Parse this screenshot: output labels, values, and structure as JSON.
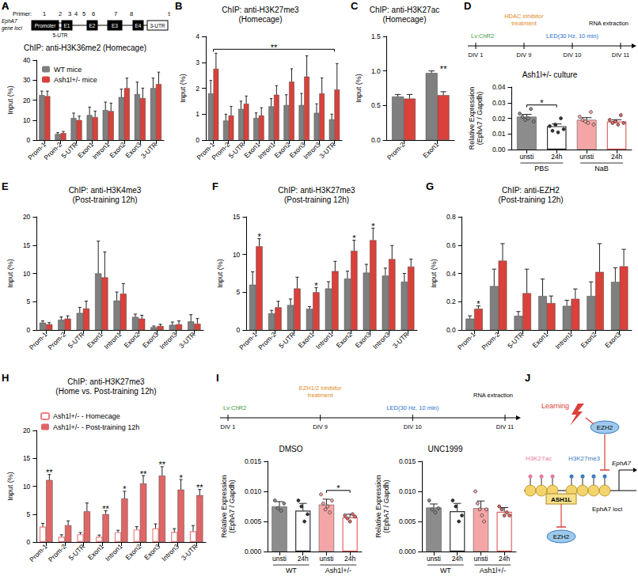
{
  "gene_map": {
    "panel": "A",
    "primer_label": "Primer:",
    "primers": [
      "1",
      "2",
      "3",
      "4",
      "5",
      "6",
      "7",
      "8",
      "9"
    ],
    "locus_label": "EphA7\ngene loci",
    "elements": [
      "Promoter",
      "E1",
      "E2",
      "E3",
      "E4",
      "3-UTR"
    ],
    "utr5_label": "5-UTR"
  },
  "chart_data": [
    {
      "panel": "A",
      "type": "bar",
      "title": "ChIP: anti-H3K36me2 (Homecage)",
      "ylabel": "Input (%)",
      "categories": [
        "Prom-1",
        "Prom-2",
        "5-UTR",
        "Exon1",
        "Intron1",
        "Exon2",
        "Exon3",
        "3-UTR"
      ],
      "series": [
        {
          "name": "WT mice",
          "color": "#7f7f7f",
          "values": [
            22.5,
            3,
            11,
            12.5,
            15,
            21.5,
            23,
            26
          ],
          "errors": [
            2,
            0.7,
            2.5,
            4,
            4,
            4,
            6,
            5
          ]
        },
        {
          "name": "Ash1l+/- mice",
          "color": "#d9413a",
          "values": [
            22,
            3.5,
            10,
            11.5,
            14.5,
            26,
            21,
            28
          ],
          "errors": [
            2.5,
            0.8,
            2,
            3,
            4,
            5,
            5,
            6
          ]
        }
      ],
      "ylim": [
        0,
        40
      ],
      "yticks": [
        0,
        10,
        20,
        30,
        40
      ],
      "legend": "top-left",
      "grid": false
    },
    {
      "panel": "B",
      "type": "bar",
      "title": "ChIP: anti-H3K27me3",
      "subtitle": "(Homecage)",
      "ylabel": "Input (%)",
      "categories": [
        "Prom-1",
        "Prom-2",
        "5-UTR",
        "Exon1",
        "Intron1",
        "Exon2",
        "Exon3",
        "Intron3",
        "3-UTR"
      ],
      "series": [
        {
          "color": "#7f7f7f",
          "values": [
            1.8,
            0.75,
            1.2,
            0.85,
            1.3,
            1.35,
            1.35,
            1.05,
            0.8
          ],
          "errors": [
            0.5,
            0.25,
            0.3,
            0.2,
            0.3,
            0.4,
            0.45,
            0.35,
            0.2
          ]
        },
        {
          "color": "#d9413a",
          "values": [
            2.75,
            0.95,
            1.4,
            0.95,
            1.75,
            2.25,
            2.45,
            1.8,
            1.95
          ],
          "errors": [
            0.6,
            0.35,
            0.3,
            0.3,
            0.35,
            0.5,
            0.8,
            0.6,
            1.0
          ]
        }
      ],
      "ylim": [
        0,
        4
      ],
      "yticks": [
        0,
        1,
        2,
        3,
        4
      ],
      "annotations": [
        {
          "text": "**",
          "from": "Prom-1",
          "to": "3-UTR"
        }
      ],
      "grid": false
    },
    {
      "panel": "C",
      "type": "bar",
      "title": "ChIP: anti-H3K27ac",
      "subtitle": "(Homecage)",
      "ylabel": "Input (%)",
      "categories": [
        "Prom-2",
        "Exon1"
      ],
      "series": [
        {
          "color": "#7f7f7f",
          "values": [
            0.63,
            0.97
          ],
          "errors": [
            0.03,
            0.03
          ]
        },
        {
          "color": "#d9413a",
          "values": [
            0.6,
            0.65
          ],
          "errors": [
            0.06,
            0.05
          ]
        }
      ],
      "ylim": [
        0,
        1.5
      ],
      "yticks": [
        {
          "value": 0,
          "label": "0.0"
        },
        0.5,
        {
          "value": 1,
          "label": "1.0"
        },
        1.5
      ],
      "annotations": [
        {
          "text": "**",
          "at": "Exon1"
        }
      ],
      "grid": false
    },
    {
      "panel": "D",
      "type": "bar",
      "title": "Ash1l+/- culture",
      "ylabel": "Relative Expression\n(EphA7 / Gapdh)",
      "categories": [
        "unsti",
        "24h",
        "unsti",
        "24h"
      ],
      "groups": [
        {
          "label": "PBS",
          "from": 0,
          "to": 1
        },
        {
          "label": "NaB",
          "from": 2,
          "to": 3
        }
      ],
      "series": [
        {
          "colors": [
            "#8c8c8c",
            "#333333",
            "#f4a6a6",
            "#e06666"
          ],
          "marker": [
            "filled",
            "hollow",
            "filled",
            "hollow"
          ],
          "values": [
            0.021,
            0.015,
            0.019,
            0.018
          ],
          "errors": [
            0.0015,
            0.0014,
            0.0014,
            0.0011
          ],
          "points": [
            [
              0.023,
              0.021,
              0.019,
              0.02,
              0.026,
              0.018
            ],
            [
              0.015,
              0.012,
              0.016,
              0.011,
              0.02,
              0.013
            ],
            [
              0.021,
              0.019,
              0.018,
              0.017,
              0.024,
              0.016
            ],
            [
              0.019,
              0.017,
              0.018,
              0.016,
              0.022,
              0.017
            ]
          ]
        }
      ],
      "ylim": [
        0,
        0.04
      ],
      "yticks": [
        {
          "value": 0,
          "label": "0.00"
        },
        0.01,
        0.02,
        0.03,
        0.04
      ],
      "annotations": [
        {
          "text": "*",
          "from": 0,
          "to": 1
        }
      ],
      "timeline": {
        "steps": [
          {
            "above": "Lv:ChR2",
            "below": "DIV 1",
            "color": "#3a9a3a"
          },
          {
            "above": "HDAC inhibitor\ntreatment",
            "below": "DIV 9",
            "color": "#e08a1e"
          },
          {
            "above": "LED(30 Hz, 10 min)",
            "below": "DIV 10",
            "color": "#1f6fd0"
          },
          {
            "above": "RNA extraction",
            "below": "DIV 11",
            "color": "#000000"
          }
        ]
      },
      "grid": false
    },
    {
      "panel": "E",
      "type": "bar",
      "title": "ChIP: anti-H3K4me3",
      "subtitle": "(Post-training 12h)",
      "ylabel": "Input (%)",
      "categories": [
        "Prom-1",
        "Prom-2",
        "5-UTR",
        "Exon1",
        "Intron1",
        "Exon2",
        "Exon3",
        "Intron3",
        "3-UTR"
      ],
      "series": [
        {
          "color": "#7f7f7f",
          "values": [
            1.3,
            1.8,
            3,
            10,
            5.2,
            2.3,
            0.5,
            0.9,
            1.5
          ],
          "errors": [
            0.3,
            0.5,
            1,
            5.7,
            1.5,
            0.5,
            0.2,
            0.5,
            1.2
          ]
        },
        {
          "color": "#d9413a",
          "values": [
            1.0,
            2.0,
            3.8,
            9.3,
            6.4,
            2.0,
            0.7,
            1.0,
            1.1
          ],
          "errors": [
            0.3,
            0.5,
            1.3,
            4.5,
            1.8,
            0.6,
            0.3,
            0.6,
            0.9
          ]
        }
      ],
      "ylim": [
        0,
        20
      ],
      "yticks": [
        0,
        5,
        10,
        15,
        20
      ],
      "grid": false
    },
    {
      "panel": "F",
      "type": "bar",
      "title": "ChIP: anti-H3K27me3",
      "subtitle": "(Post-training 12h)",
      "ylabel": "Input (%)",
      "categories": [
        "Prom-1",
        "Prom-2",
        "5-UTR",
        "Exon1",
        "Intron1",
        "Exon2",
        "Exon3",
        "Intron3",
        "3-UTR"
      ],
      "series": [
        {
          "color": "#7f7f7f",
          "values": [
            6,
            2.2,
            3.3,
            2.8,
            5.5,
            6.8,
            7.6,
            7.2,
            6.4
          ],
          "errors": [
            1.7,
            0.4,
            0.8,
            0.3,
            0.9,
            1.0,
            1.1,
            1.0,
            1.1
          ]
        },
        {
          "color": "#d9413a",
          "values": [
            11.1,
            3,
            5.5,
            5,
            7.8,
            10.5,
            11.9,
            9.4,
            8.4
          ],
          "errors": [
            1.0,
            0.8,
            1.5,
            0.6,
            1.3,
            1.4,
            1.6,
            1.8,
            1.0
          ]
        }
      ],
      "ylim": [
        0,
        15
      ],
      "yticks": [
        0,
        5,
        10,
        15
      ],
      "annotations": [
        {
          "text": "*",
          "at": "Prom-1"
        },
        {
          "text": "*",
          "at": "Exon1"
        },
        {
          "text": "*",
          "at": "Exon2"
        },
        {
          "text": "*",
          "at": "Exon3"
        }
      ],
      "grid": false
    },
    {
      "panel": "G",
      "type": "bar",
      "title": "ChIP: anti-EZH2",
      "subtitle": "(Post-training 12h)",
      "ylabel": "Input (%)",
      "categories": [
        "Prom-1",
        "Prom-2",
        "5-UTR",
        "Exon1",
        "Intron1",
        "Exon2",
        "Exon3"
      ],
      "series": [
        {
          "color": "#7f7f7f",
          "values": [
            0.08,
            0.31,
            0.1,
            0.24,
            0.17,
            0.24,
            0.34
          ],
          "errors": [
            0.02,
            0.12,
            0.03,
            0.12,
            0.04,
            0.1,
            0.1
          ]
        },
        {
          "color": "#d9413a",
          "values": [
            0.15,
            0.49,
            0.26,
            0.19,
            0.22,
            0.41,
            0.45
          ],
          "errors": [
            0.02,
            0.12,
            0.17,
            0.05,
            0.07,
            0.2,
            0.12
          ]
        }
      ],
      "ylim": [
        0,
        0.8
      ],
      "yticks": [
        {
          "value": 0,
          "label": "0.0"
        },
        0.2,
        0.4,
        0.6,
        0.8
      ],
      "annotations": [
        {
          "text": "*",
          "at": "Prom-1"
        }
      ],
      "grid": false
    },
    {
      "panel": "H",
      "type": "bar",
      "title": "ChIP: anti-H3K27me3",
      "subtitle": "(Home vs. Post-training 12h)",
      "ylabel": "Input (%)",
      "categories": [
        "Prom-1",
        "Prom-2",
        "5-UTR",
        "Exon1",
        "Intron1",
        "Exon2",
        "Exon3",
        "Intron3",
        "3-UTR"
      ],
      "series": [
        {
          "name": "Ash1l+/- - Homecage",
          "color": "#f08080",
          "marker": "hollow",
          "values": [
            2.75,
            0.95,
            1.4,
            0.95,
            1.75,
            2.25,
            2.45,
            1.8,
            1.95
          ],
          "errors": [
            0.6,
            0.35,
            0.3,
            0.3,
            0.35,
            0.5,
            0.8,
            0.6,
            1.0
          ]
        },
        {
          "name": "Ash1l+/- - Post-training 12h",
          "color": "#e06666",
          "values": [
            11.1,
            3,
            5.5,
            5,
            7.8,
            10.5,
            11.9,
            9.4,
            8.4
          ],
          "errors": [
            1.0,
            0.8,
            1.5,
            0.6,
            1.3,
            1.4,
            1.6,
            1.8,
            1.0
          ]
        }
      ],
      "ylim": [
        0,
        20
      ],
      "yticks": [
        0,
        5,
        10,
        15,
        20
      ],
      "annotations": [
        {
          "text": "**",
          "at": "Prom-1"
        },
        {
          "text": "**",
          "at": "Exon1"
        },
        {
          "text": "*",
          "at": "Intron1"
        },
        {
          "text": "**",
          "at": "Exon2"
        },
        {
          "text": "**",
          "at": "Exon3"
        },
        {
          "text": "*",
          "at": "Intron3"
        },
        {
          "text": "**",
          "at": "3-UTR"
        }
      ],
      "legend": "top",
      "grid": false
    },
    {
      "panel": "I",
      "type": "bar",
      "title": "DMSO",
      "ylabel": "Relative Expression\n(EphA7 / Gapdh)",
      "categories": [
        "unsti",
        "24h",
        "unsti",
        "24h"
      ],
      "groups": [
        {
          "label": "WT",
          "from": 0,
          "to": 1
        },
        {
          "label": "Ash1l+/-",
          "from": 2,
          "to": 3
        }
      ],
      "series": [
        {
          "colors": [
            "#8c8c8c",
            "#333333",
            "#f4a6a6",
            "#e06666"
          ],
          "marker": [
            "filled",
            "hollow",
            "filled",
            "hollow"
          ],
          "values": [
            0.0075,
            0.0068,
            0.0078,
            0.0057
          ],
          "errors": [
            0.0008,
            0.0012,
            0.0009,
            0.0005
          ],
          "points": [
            [
              0.0085,
              0.0072,
              0.0068,
              0.008
            ],
            [
              0.0085,
              0.0075,
              0.005,
              0.0062
            ],
            [
              0.0095,
              0.008,
              0.007,
              0.0075,
              0.0065,
              0.0085
            ],
            [
              0.006,
              0.0055,
              0.005,
              0.0062,
              0.0058
            ]
          ]
        }
      ],
      "ylim": [
        0,
        0.015
      ],
      "yticks": [
        {
          "value": 0,
          "label": "0.000"
        },
        0.005,
        {
          "value": 0.01,
          "label": "0.010"
        },
        0.015
      ],
      "annotations": [
        {
          "text": "*",
          "from": 2,
          "to": 3
        }
      ],
      "timeline": {
        "steps": [
          {
            "above": "Lv:ChR2",
            "below": "DIV 1",
            "color": "#3a9a3a"
          },
          {
            "above": "EZH1/2 inhibitor\ntreatment",
            "below": "DIV 9",
            "color": "#e08a1e"
          },
          {
            "above": "LED(30 Hz, 10 min)",
            "below": "DIV 10",
            "color": "#1f6fd0"
          },
          {
            "above": "RNA extraction",
            "below": "DIV 11",
            "color": "#000000"
          }
        ]
      },
      "grid": false
    },
    {
      "type": "bar",
      "title": "UNC1999",
      "ylabel": "Relative Expression\n(EphA7 / Gapdh)",
      "categories": [
        "unsti",
        "24h",
        "unsti",
        "24h"
      ],
      "groups": [
        {
          "label": "WT",
          "from": 0,
          "to": 1
        },
        {
          "label": "Ash1l+/-",
          "from": 2,
          "to": 3
        }
      ],
      "series": [
        {
          "colors": [
            "#8c8c8c",
            "#333333",
            "#f4a6a6",
            "#e06666"
          ],
          "marker": [
            "filled",
            "hollow",
            "filled",
            "hollow"
          ],
          "values": [
            0.0073,
            0.0067,
            0.0072,
            0.0066
          ],
          "errors": [
            0.0006,
            0.0013,
            0.0012,
            0.0007
          ],
          "points": [
            [
              0.0085,
              0.007,
              0.0065,
              0.0072
            ],
            [
              0.0085,
              0.0075,
              0.005,
              0.006
            ],
            [
              0.01,
              0.008,
              0.007,
              0.006,
              0.005,
              0.007
            ],
            [
              0.0075,
              0.007,
              0.006,
              0.0065,
              0.006
            ]
          ]
        }
      ],
      "ylim": [
        0,
        0.015
      ],
      "yticks": [
        {
          "value": 0,
          "label": "0.000"
        },
        0.005,
        {
          "value": 0.01,
          "label": "0.010"
        },
        0.015
      ],
      "grid": false
    }
  ],
  "diagram": {
    "panel": "J",
    "learning": "Learning",
    "ezh2_top": "EZH2",
    "h3k27ac": "H3K27ac",
    "ash1l": "ASH1L",
    "h3k27me3": "H3K27me3",
    "gene": "EphA7",
    "locus": "EphA7 loci",
    "ezh2_bottom": "EZH2"
  }
}
